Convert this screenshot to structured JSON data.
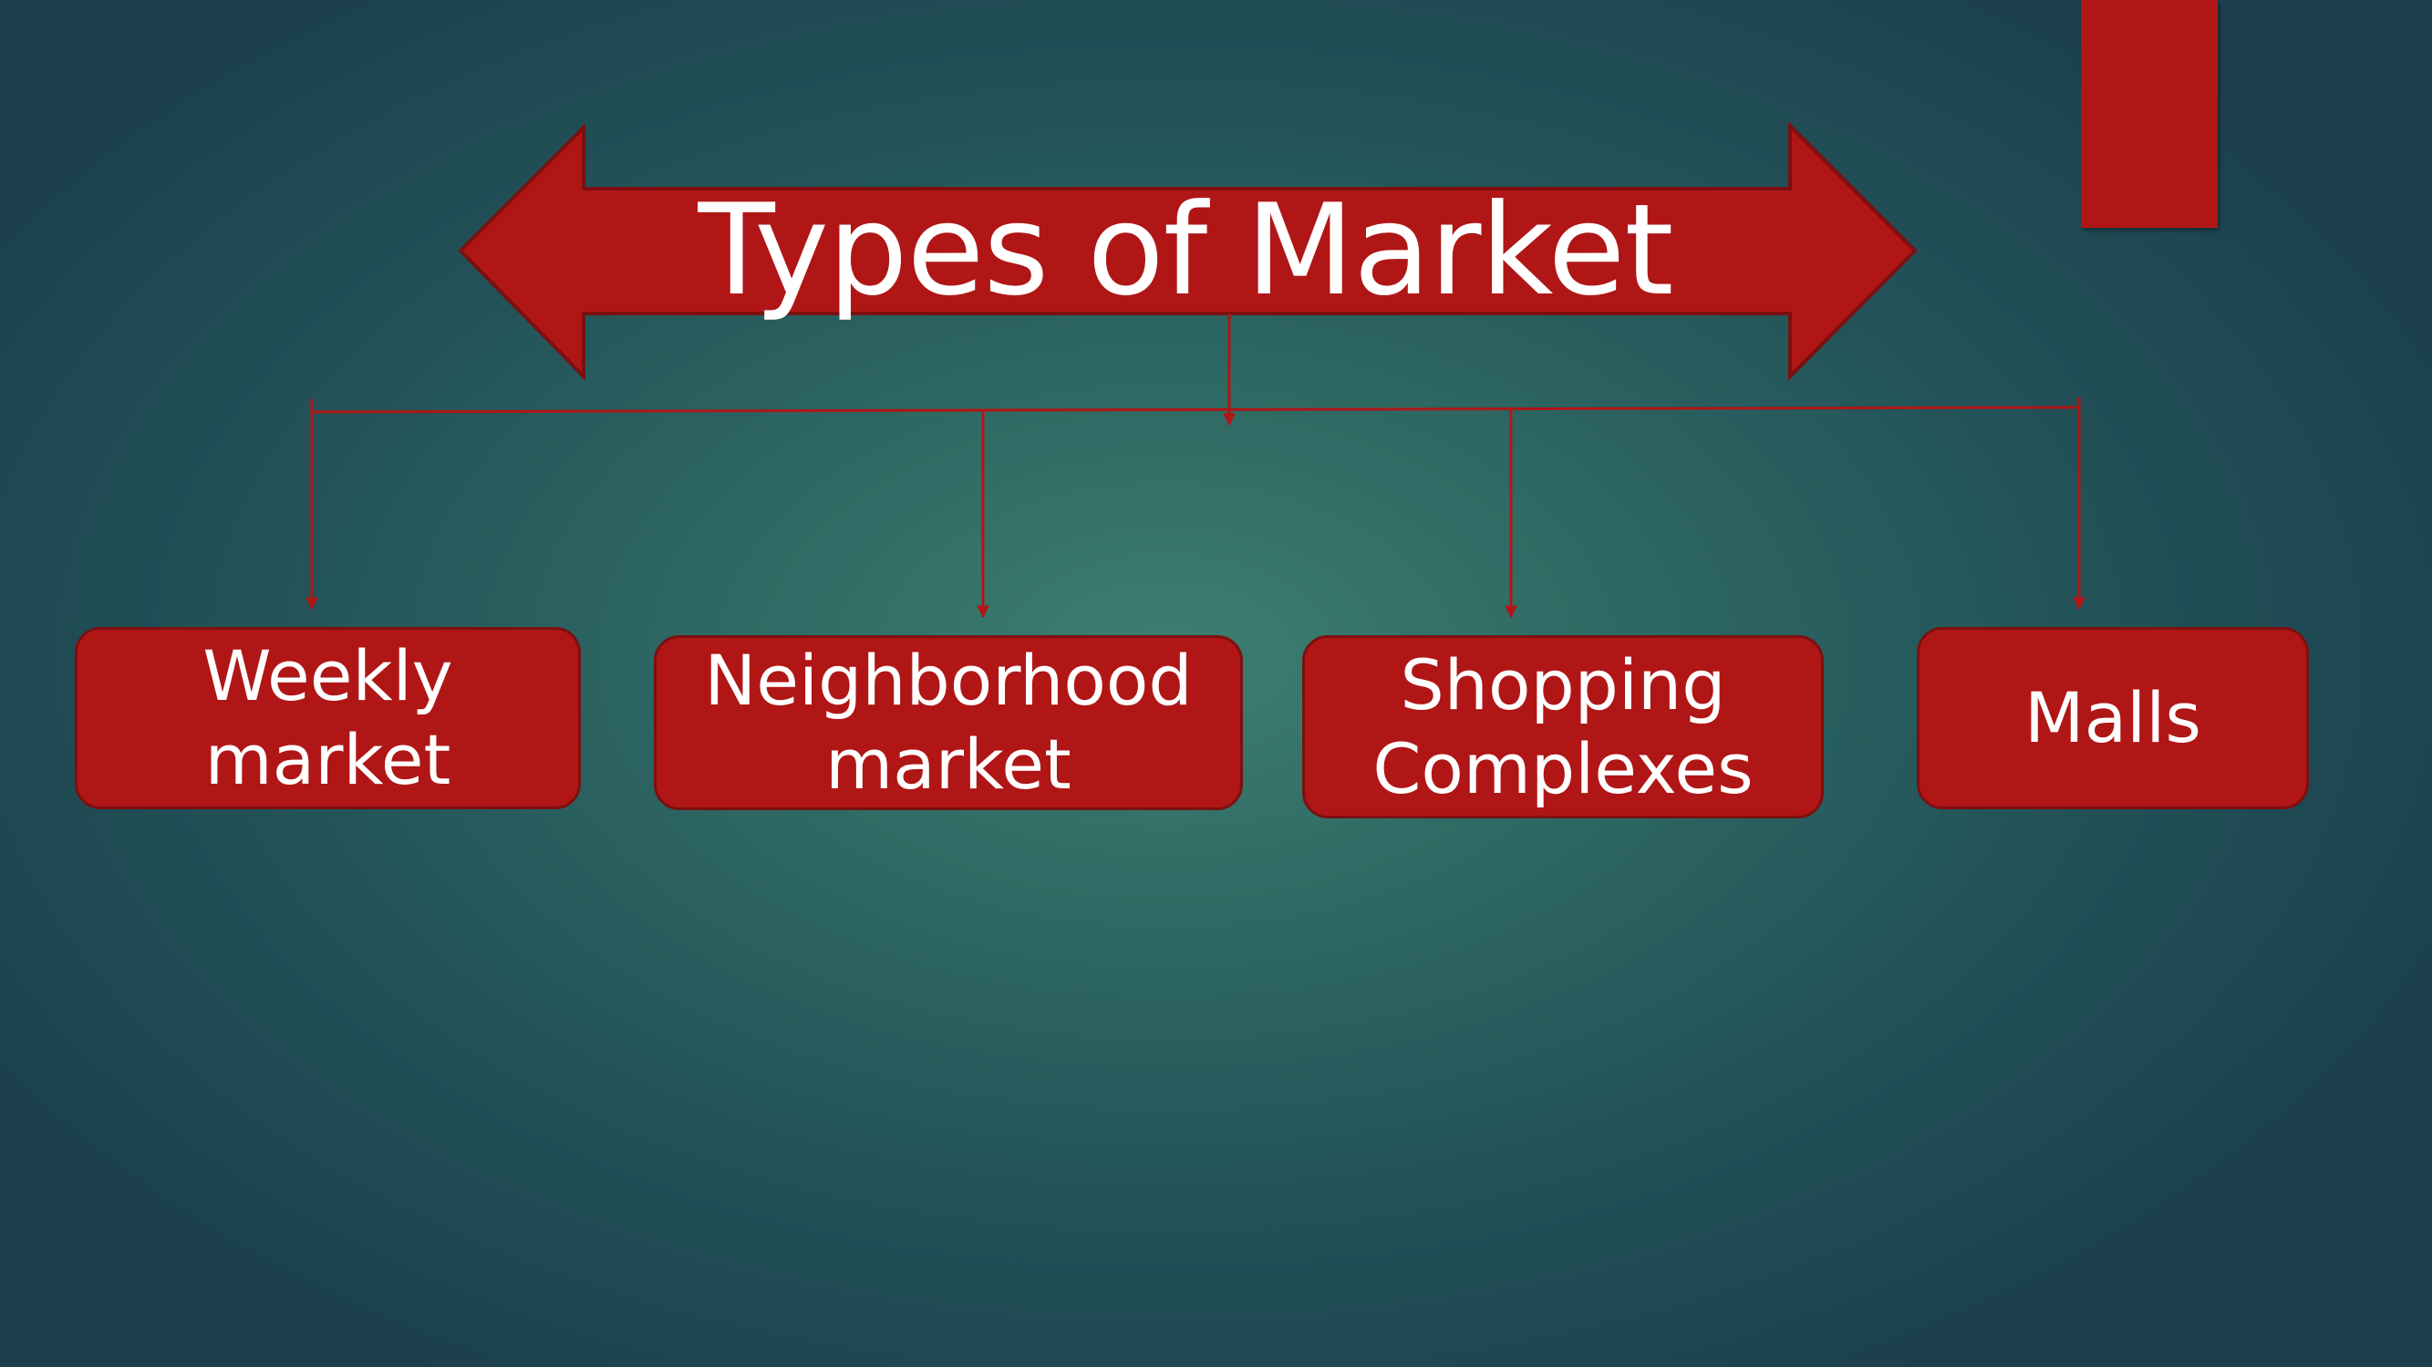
{
  "slide": {
    "title": "Types of Market",
    "branches": [
      {
        "label": "Weekly\nmarket"
      },
      {
        "label": "Neighborhood\nmarket"
      },
      {
        "label": "Shopping\nComplexes"
      },
      {
        "label": "Malls"
      }
    ]
  },
  "colors": {
    "accent_red": "#b01616",
    "background": "#2f6a64",
    "text": "#ffffff"
  }
}
